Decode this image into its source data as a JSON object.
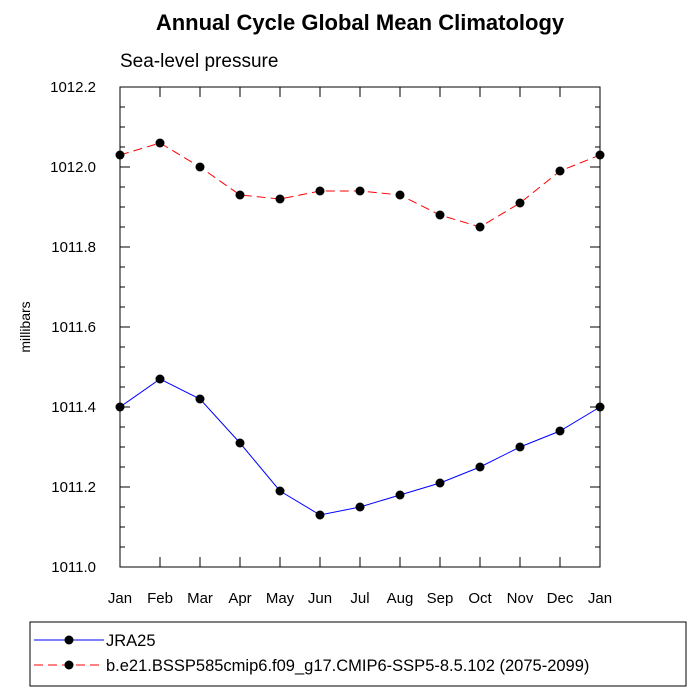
{
  "chart_data": {
    "type": "line",
    "title": "Annual Cycle Global Mean Climatology",
    "subtitle": "Sea-level pressure",
    "ylabel": "millibars",
    "xlabel": "",
    "categories": [
      "Jan",
      "Feb",
      "Mar",
      "Apr",
      "May",
      "Jun",
      "Jul",
      "Aug",
      "Sep",
      "Oct",
      "Nov",
      "Dec",
      "Jan"
    ],
    "ylim": [
      1011.0,
      1012.2
    ],
    "yticks": [
      "1011.0",
      "1011.2",
      "1011.4",
      "1011.6",
      "1011.8",
      "1012.0",
      "1012.2"
    ],
    "grid": false,
    "legend_position": "bottom",
    "series": [
      {
        "name": "JRA25",
        "color": "#0000ff",
        "line_style": "solid",
        "marker": "filled-circle",
        "values": [
          1011.4,
          1011.47,
          1011.42,
          1011.31,
          1011.19,
          1011.13,
          1011.15,
          1011.18,
          1011.21,
          1011.25,
          1011.3,
          1011.34,
          1011.4
        ]
      },
      {
        "name": "b.e21.BSSP585cmip6.f09_g17.CMIP6-SSP5-8.5.102 (2075-2099)",
        "color": "#ff0000",
        "line_style": "dashed",
        "marker": "filled-circle",
        "values": [
          1012.03,
          1012.06,
          1012.0,
          1011.93,
          1011.92,
          1011.94,
          1011.94,
          1011.93,
          1011.88,
          1011.85,
          1011.91,
          1011.99,
          1012.03
        ]
      }
    ]
  }
}
